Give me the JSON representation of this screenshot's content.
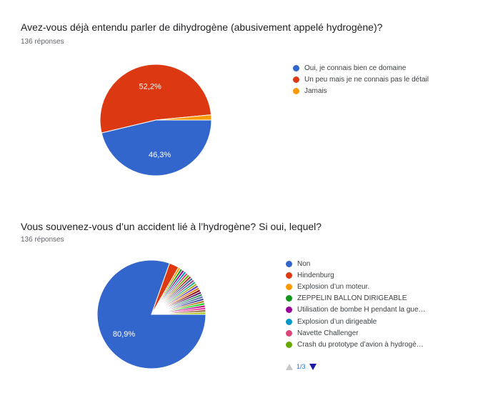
{
  "questions": [
    {
      "title": "Avez-vous déjà entendu parler de dihydrogène (abusivement appelé hydrogène)?",
      "responses": "136 réponses"
    },
    {
      "title": "Vous souvenez-vous d’un accident lié à l’hydrogène?  Si oui, lequel?",
      "responses": "136 réponses",
      "pager": "1/3"
    }
  ],
  "chart_data": [
    {
      "type": "pie",
      "labels": [
        "Oui, je connais bien ce domaine",
        "Un peu mais je ne connais pas le détail",
        "Jamais"
      ],
      "values": [
        46.3,
        52.2,
        1.5
      ],
      "colors": [
        "#3366cc",
        "#dc3912",
        "#ff9900"
      ],
      "data_labels": [
        "46,3%",
        "52,2%",
        ""
      ],
      "legend_position": "right"
    },
    {
      "type": "pie",
      "labels": [
        "Non",
        "Hindenburg",
        "Explosion d’un moteur.",
        "ZEPPELIN BALLON DIRIGEABLE",
        "Utilisation de bombe H pendant la gue…",
        "Explosion d’un dirigeable",
        "Navette Challenger",
        "Crash du prototype d’avion à hydrogè…"
      ],
      "values": [
        80.9,
        2.9,
        0.7,
        0.7,
        0.7,
        0.7,
        0.7,
        0.7
      ],
      "colors": [
        "#3366cc",
        "#dc3912",
        "#ff9900",
        "#109618",
        "#990099",
        "#0099c6",
        "#dd4477",
        "#66aa00"
      ],
      "data_labels": [
        "80,9%",
        "",
        "",
        "",
        "",
        "",
        "",
        ""
      ],
      "other_slices": {
        "count": 18,
        "value_each": 0.7,
        "colors": [
          "#b82e2e",
          "#316395",
          "#994499",
          "#22aa99",
          "#aaaa11",
          "#6633cc",
          "#e67300",
          "#8b0707",
          "#651067",
          "#329262",
          "#5574a6",
          "#3b3eac",
          "#b77322",
          "#16d620",
          "#b91383",
          "#f4359e",
          "#9c5935",
          "#a9c413"
        ]
      },
      "legend_position": "right"
    }
  ]
}
